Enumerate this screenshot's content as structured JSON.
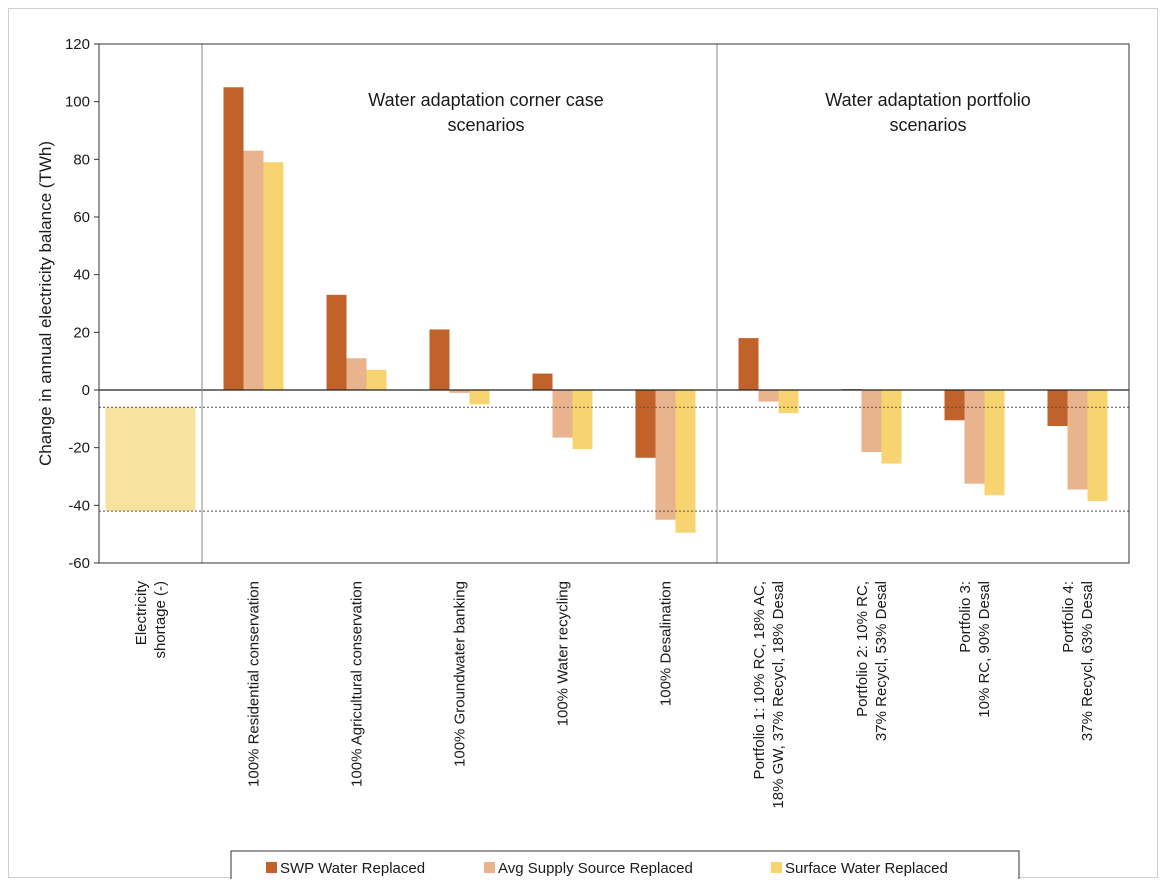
{
  "chart_data": {
    "type": "bar",
    "ylabel": "Change in annual electricity balance (TWh)",
    "ylim": [
      -60,
      120
    ],
    "yticks": [
      -60,
      -40,
      -20,
      0,
      20,
      40,
      60,
      80,
      100,
      120
    ],
    "categories": [
      [
        "Electricity",
        "shortage (-)"
      ],
      [
        "100% Residential conservation"
      ],
      [
        "100% Agricultural conservation"
      ],
      [
        "100% Groundwater banking"
      ],
      [
        "100% Water recycling"
      ],
      [
        "100% Desalination"
      ],
      [
        "Portfolio 1: 10% RC, 18% AC,",
        "18% GW, 37% Recycl, 18% Desal"
      ],
      [
        "Portfolio 2: 10% RC,",
        "37% Recycl, 53% Desal"
      ],
      [
        "Portfolio 3:",
        "10% RC, 90% Desal"
      ],
      [
        "Portfolio 4:",
        "37% Recycl, 63% Desal"
      ]
    ],
    "series": [
      {
        "name": "SWP Water Replaced",
        "color": "#c0622a",
        "values": [
          null,
          105,
          33,
          21,
          5.7,
          -23.5,
          18,
          0.3,
          -10.5,
          -12.5
        ]
      },
      {
        "name": "Avg Supply Source Replaced",
        "color": "#e9b38d",
        "values": [
          null,
          83,
          11,
          -1,
          -16.5,
          -45,
          -4,
          -21.5,
          -32.5,
          -34.5
        ]
      },
      {
        "name": "Surface Water Replaced",
        "color": "#f7d46f",
        "values": [
          null,
          79,
          7,
          -5,
          -20.5,
          -49.5,
          -8,
          -25.5,
          -36.5,
          -38.5
        ]
      }
    ],
    "shortage_band": {
      "from": -6,
      "to": -42,
      "color": "#f9e2a0"
    },
    "reference_lines": [
      -6,
      -42
    ],
    "annotations": [
      {
        "lines": [
          "Water adaptation corner case",
          "scenarios"
        ]
      },
      {
        "lines": [
          "Water adaptation portfolio",
          "scenarios"
        ]
      }
    ],
    "legend_position": "bottom"
  }
}
